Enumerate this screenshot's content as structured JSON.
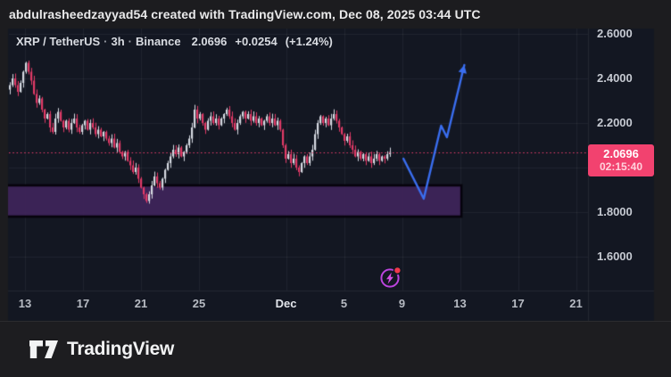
{
  "attribution_bar": {
    "text": "abdulrasheedzayyad54 created with TradingView.com, Dec 08, 2025 03:44 UTC"
  },
  "legend": {
    "symbol": "XRP / TetherUS",
    "separator": "·",
    "interval": "3h",
    "exchange": "Binance",
    "last_price": "2.0696",
    "change_abs": "+0.0254",
    "change_pct": "(+1.24%)"
  },
  "price_scale": {
    "labels": [
      {
        "text": "2.6000",
        "price": 2.6
      },
      {
        "text": "2.4000",
        "price": 2.4
      },
      {
        "text": "2.2000",
        "price": 2.2
      },
      {
        "text": "1.8000",
        "price": 1.8
      },
      {
        "text": "1.6000",
        "price": 1.6
      }
    ],
    "badge": {
      "price_text": "2.0696",
      "price": 2.0696,
      "countdown": "02:15:40",
      "color": "#f2426f"
    }
  },
  "time_scale": {
    "labels": [
      {
        "text": "13",
        "day": 0,
        "bold": false
      },
      {
        "text": "17",
        "day": 4,
        "bold": false
      },
      {
        "text": "21",
        "day": 8,
        "bold": false
      },
      {
        "text": "25",
        "day": 12,
        "bold": false
      },
      {
        "text": "Dec",
        "day": 18,
        "bold": true
      },
      {
        "text": "5",
        "day": 22,
        "bold": false
      },
      {
        "text": "9",
        "day": 26,
        "bold": false
      },
      {
        "text": "13",
        "day": 30,
        "bold": false
      },
      {
        "text": "17",
        "day": 34,
        "bold": false
      },
      {
        "text": "21",
        "day": 38,
        "bold": false
      }
    ]
  },
  "logo_bar": {
    "brand": "TradingView"
  },
  "colors": {
    "page_bg": "#1c1c1f",
    "chart_bg": "#131722",
    "grid": "rgba(255,255,255,0.055)",
    "candle_up": "#d5d9e1",
    "candle_down": "#e23a67",
    "price_line": "#ef3e6e",
    "badge_bg": "#f2426f",
    "zone_fill": "rgba(64,37,92,0.9)",
    "zone_border": "#06030c",
    "arrow_blue": "#3a6ef0",
    "spark_ring": "#bb44dd",
    "spark_bolt": "#d34fe3",
    "spark_dot": "#f0384a"
  },
  "chart_data": {
    "type": "candlestick",
    "title": "XRP / TetherUS · 3h · Binance",
    "interval": "3h",
    "x_range": "Nov 12 – Dec 8, 2025 (projection drawing extends to ~Dec 13)",
    "ylim": [
      1.45,
      2.63
    ],
    "gridline_prices": [
      2.6,
      2.4,
      2.2,
      2.0,
      1.8,
      1.6
    ],
    "last_price": 2.0696,
    "change_abs": 0.0254,
    "change_pct": 1.24,
    "first_open": 2.35,
    "closes": [
      2.37,
      2.4,
      2.37,
      2.34,
      2.38,
      2.43,
      2.47,
      2.43,
      2.39,
      2.33,
      2.29,
      2.31,
      2.26,
      2.22,
      2.24,
      2.18,
      2.16,
      2.22,
      2.25,
      2.21,
      2.18,
      2.21,
      2.17,
      2.2,
      2.22,
      2.18,
      2.16,
      2.19,
      2.21,
      2.17,
      2.2,
      2.18,
      2.15,
      2.17,
      2.14,
      2.16,
      2.13,
      2.11,
      2.13,
      2.09,
      2.11,
      2.07,
      2.05,
      2.07,
      2.03,
      2.01,
      1.98,
      2.0,
      1.95,
      1.91,
      1.88,
      1.85,
      1.88,
      1.92,
      1.96,
      1.93,
      1.91,
      1.95,
      1.99,
      2.02,
      2.05,
      2.08,
      2.06,
      2.09,
      2.05,
      2.07,
      2.1,
      2.13,
      2.18,
      2.26,
      2.22,
      2.24,
      2.2,
      2.17,
      2.21,
      2.23,
      2.2,
      2.22,
      2.19,
      2.22,
      2.24,
      2.26,
      2.23,
      2.2,
      2.17,
      2.2,
      2.23,
      2.25,
      2.22,
      2.24,
      2.21,
      2.23,
      2.2,
      2.22,
      2.19,
      2.21,
      2.23,
      2.2,
      2.22,
      2.19,
      2.21,
      2.17,
      2.1,
      2.04,
      2.06,
      2.02,
      2.04,
      2.0,
      1.98,
      2.02,
      2.05,
      2.02,
      2.05,
      2.08,
      2.15,
      2.2,
      2.23,
      2.2,
      2.22,
      2.19,
      2.22,
      2.24,
      2.21,
      2.18,
      2.15,
      2.12,
      2.14,
      2.1,
      2.08,
      2.05,
      2.07,
      2.04,
      2.06,
      2.03,
      2.05,
      2.02,
      2.04,
      2.06,
      2.03,
      2.05,
      2.04,
      2.06,
      2.0696
    ],
    "zone": {
      "shape": "rectangle",
      "price_top": 1.92,
      "price_bottom": 1.78,
      "day_start": -2,
      "day_end": 30.1
    },
    "projection_arrow": {
      "shape": "polyline-arrow",
      "points": [
        {
          "day": 26.1,
          "price": 2.04
        },
        {
          "day": 27.5,
          "price": 1.86
        },
        {
          "day": 28.7,
          "price": 2.188
        },
        {
          "day": 29.1,
          "price": 2.136
        },
        {
          "day": 30.3,
          "price": 2.46
        }
      ]
    },
    "current_price_dotted_line": 2.0696
  }
}
